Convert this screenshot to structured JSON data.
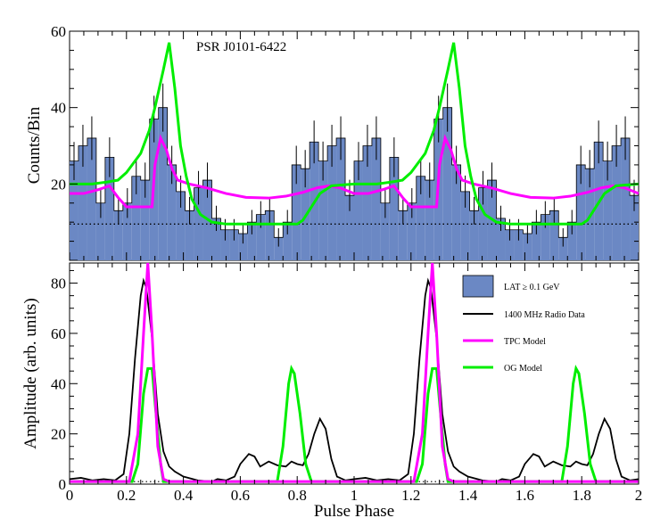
{
  "chart_data": [
    {
      "type": "bar",
      "panel": "top",
      "annotation": "PSR J0101-6422",
      "ylabel": "Counts/Bin",
      "xlabel": "",
      "xlim": [
        0,
        2
      ],
      "ylim": [
        0,
        60
      ],
      "yticks": [
        20,
        40,
        60
      ],
      "background_level": 9.5,
      "bins_per_cycle": 32,
      "series": [
        {
          "name": "LAT ≥ 0.1 GeV counts",
          "color": "#6b88c4",
          "values": [
            26,
            30,
            32,
            15,
            27,
            13,
            15,
            22,
            21,
            37,
            40,
            25,
            18,
            13,
            19,
            21,
            11,
            8,
            8,
            7,
            10,
            12,
            13,
            6,
            10,
            25,
            24,
            31,
            26,
            30,
            32,
            17
          ],
          "errors": [
            5,
            5.5,
            5.7,
            3.9,
            5.2,
            3.6,
            3.9,
            4.7,
            4.6,
            6.1,
            6.3,
            5,
            4.2,
            3.6,
            4.4,
            4.6,
            3.3,
            2.8,
            2.8,
            2.6,
            3.2,
            3.5,
            3.6,
            2.4,
            3.2,
            5,
            4.9,
            5.6,
            5.1,
            5.5,
            5.7,
            4.1
          ]
        },
        {
          "name": "TPC Model",
          "color": "#ff00ff",
          "points": [
            [
              0,
              17.5
            ],
            [
              0.05,
              17.5
            ],
            [
              0.1,
              18.5
            ],
            [
              0.14,
              19.5
            ],
            [
              0.17,
              16.5
            ],
            [
              0.2,
              14
            ],
            [
              0.29,
              14
            ],
            [
              0.3,
              25
            ],
            [
              0.32,
              32
            ],
            [
              0.34,
              29
            ],
            [
              0.36,
              24
            ],
            [
              0.38,
              21
            ],
            [
              0.42,
              20
            ],
            [
              0.48,
              19
            ],
            [
              0.55,
              17.5
            ],
            [
              0.62,
              16.5
            ],
            [
              0.7,
              16.3
            ],
            [
              0.76,
              16.8
            ],
            [
              0.82,
              17.8
            ],
            [
              0.87,
              19
            ],
            [
              0.91,
              19.5
            ],
            [
              0.95,
              19
            ],
            [
              1.0,
              17.5
            ]
          ]
        },
        {
          "name": "OG Model",
          "color": "#00ee00",
          "points": [
            [
              0,
              20
            ],
            [
              0.08,
              20
            ],
            [
              0.13,
              20.5
            ],
            [
              0.17,
              21
            ],
            [
              0.2,
              23
            ],
            [
              0.25,
              28
            ],
            [
              0.28,
              34
            ],
            [
              0.3,
              40
            ],
            [
              0.33,
              50
            ],
            [
              0.35,
              57
            ],
            [
              0.37,
              45
            ],
            [
              0.39,
              30
            ],
            [
              0.41,
              22
            ],
            [
              0.43,
              16
            ],
            [
              0.46,
              12
            ],
            [
              0.5,
              10
            ],
            [
              0.55,
              9.5
            ],
            [
              0.8,
              9.5
            ],
            [
              0.82,
              10.5
            ],
            [
              0.85,
              14
            ],
            [
              0.88,
              17.5
            ],
            [
              0.92,
              19.5
            ],
            [
              1.0,
              20
            ]
          ]
        }
      ]
    },
    {
      "type": "line",
      "panel": "bottom",
      "xlabel": "Pulse Phase",
      "ylabel": "Amplitude (arb. units)",
      "xlim": [
        0,
        2
      ],
      "ylim": [
        0,
        88
      ],
      "xticks": [
        0,
        0.2,
        0.4,
        0.6,
        0.8,
        1,
        1.2,
        1.4,
        1.6,
        1.8,
        2
      ],
      "xtick_labels": [
        "0",
        "0.2",
        "0.4",
        "0.6",
        "0.8",
        "1",
        "1.2",
        "1.4",
        "1.6",
        "1.8",
        "2"
      ],
      "yticks": [
        0,
        20,
        40,
        60,
        80
      ],
      "baseline_level": 1,
      "legend": [
        {
          "label": "LAT ≥ 0.1 GeV",
          "kind": "box",
          "color": "#6b88c4"
        },
        {
          "label": "1400 MHz Radio Data",
          "kind": "line",
          "color": "#000000"
        },
        {
          "label": "TPC Model",
          "kind": "line",
          "color": "#ff00ff"
        },
        {
          "label": "OG Model",
          "kind": "line",
          "color": "#00ee00"
        }
      ],
      "series": [
        {
          "name": "1400 MHz Radio Data",
          "color": "#000000",
          "points": [
            [
              0,
              2
            ],
            [
              0.04,
              2.5
            ],
            [
              0.08,
              1.5
            ],
            [
              0.12,
              2
            ],
            [
              0.16,
              1.5
            ],
            [
              0.19,
              4
            ],
            [
              0.21,
              20
            ],
            [
              0.23,
              50
            ],
            [
              0.25,
              75
            ],
            [
              0.26,
              81
            ],
            [
              0.27,
              78
            ],
            [
              0.29,
              58
            ],
            [
              0.31,
              28
            ],
            [
              0.33,
              13
            ],
            [
              0.35,
              7
            ],
            [
              0.37,
              5
            ],
            [
              0.4,
              3
            ],
            [
              0.45,
              1.5
            ],
            [
              0.5,
              1
            ],
            [
              0.52,
              2
            ],
            [
              0.55,
              1.5
            ],
            [
              0.58,
              3
            ],
            [
              0.6,
              8
            ],
            [
              0.63,
              12
            ],
            [
              0.65,
              11
            ],
            [
              0.67,
              7
            ],
            [
              0.7,
              9
            ],
            [
              0.73,
              7.5
            ],
            [
              0.76,
              7
            ],
            [
              0.78,
              9
            ],
            [
              0.8,
              8
            ],
            [
              0.82,
              7.5
            ],
            [
              0.84,
              12
            ],
            [
              0.86,
              20
            ],
            [
              0.88,
              26
            ],
            [
              0.9,
              22
            ],
            [
              0.92,
              10
            ],
            [
              0.94,
              3
            ],
            [
              0.97,
              1.5
            ],
            [
              1.0,
              2
            ]
          ]
        },
        {
          "name": "TPC Model",
          "color": "#ff00ff",
          "points": [
            [
              0,
              1
            ],
            [
              0.21,
              1
            ],
            [
              0.24,
              20
            ],
            [
              0.26,
              60
            ],
            [
              0.275,
              88
            ],
            [
              0.29,
              60
            ],
            [
              0.31,
              15
            ],
            [
              0.33,
              2
            ],
            [
              0.35,
              1
            ],
            [
              1.0,
              1
            ]
          ]
        },
        {
          "name": "OG Model",
          "color": "#00ee00",
          "points": [
            [
              0,
              1
            ],
            [
              0.22,
              1
            ],
            [
              0.24,
              8
            ],
            [
              0.26,
              36
            ],
            [
              0.275,
              46
            ],
            [
              0.29,
              46
            ],
            [
              0.3,
              33
            ],
            [
              0.32,
              8
            ],
            [
              0.33,
              1
            ],
            [
              0.73,
              1
            ],
            [
              0.75,
              15
            ],
            [
              0.77,
              40
            ],
            [
              0.78,
              46
            ],
            [
              0.79,
              44
            ],
            [
              0.81,
              28
            ],
            [
              0.83,
              8
            ],
            [
              0.85,
              1
            ],
            [
              1.0,
              1
            ]
          ]
        }
      ]
    }
  ]
}
